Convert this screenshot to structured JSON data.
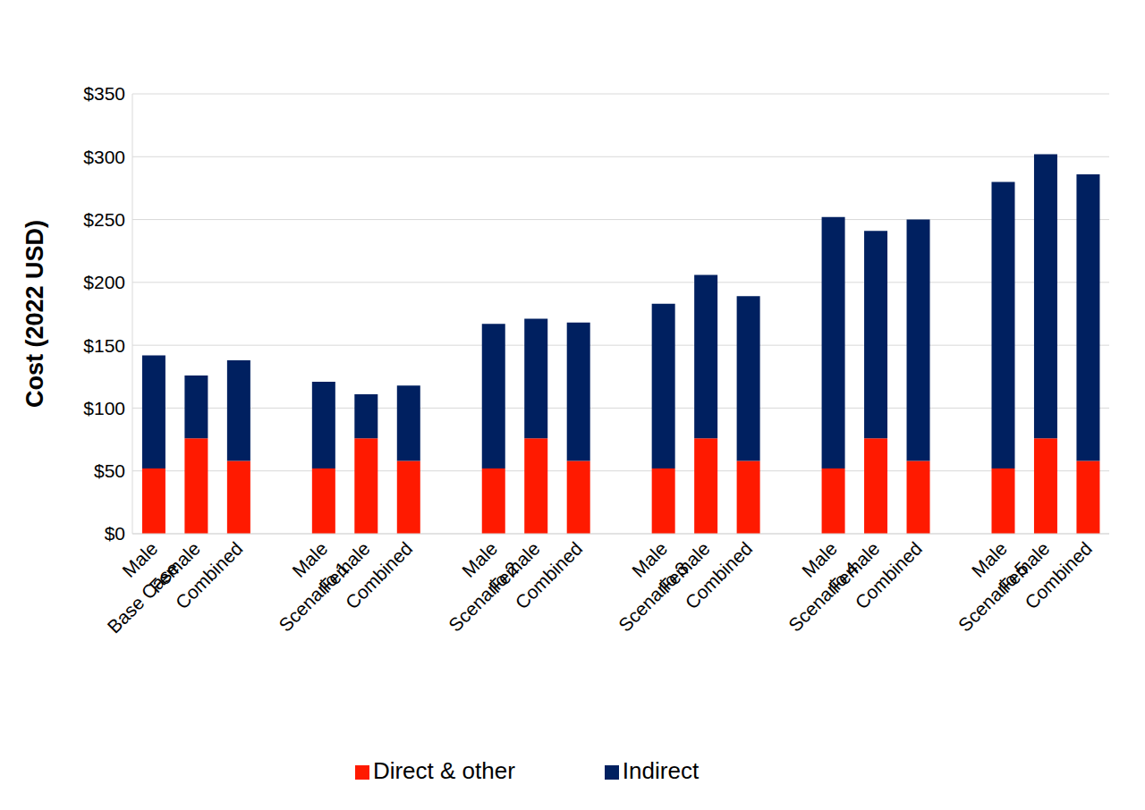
{
  "chart_data": {
    "type": "bar",
    "stacked": true,
    "grid": true,
    "legend": "bottom",
    "y_label": "Cost (2022 USD)",
    "categories": [
      "Male",
      "Female",
      "Combined",
      null,
      "Male",
      "Female",
      "Combined",
      null,
      "Male",
      "Female",
      "Combined",
      null,
      "Male",
      "Female",
      "Combined",
      null,
      "Male",
      "Female",
      "Combined",
      null,
      "Male",
      "Female",
      "Combined"
    ],
    "groups": [
      "Base Case",
      "Scenario 1",
      "Scenario 2",
      "Scenario 3",
      "Scenario 4",
      "Scenario 5"
    ],
    "series": [
      {
        "name": "Direct & other",
        "color": "#ff1a00",
        "values": [
          52,
          76,
          58,
          null,
          52,
          76,
          58,
          null,
          52,
          76,
          58,
          null,
          52,
          76,
          58,
          null,
          52,
          76,
          58,
          null,
          52,
          76,
          58
        ]
      },
      {
        "name": "Indirect",
        "color": "#002060",
        "values": [
          90,
          50,
          80,
          null,
          69,
          35,
          60,
          null,
          115,
          95,
          110,
          null,
          131,
          130,
          131,
          null,
          200,
          165,
          192,
          null,
          228,
          226,
          228
        ]
      }
    ],
    "ylim": [
      0,
      350
    ],
    "yticks": [
      {
        "value": 0,
        "label": "$0"
      },
      {
        "value": 50,
        "label": "$50"
      },
      {
        "value": 100,
        "label": "$100"
      },
      {
        "value": 150,
        "label": "$150"
      },
      {
        "value": 200,
        "label": "$200"
      },
      {
        "value": 250,
        "label": "$250"
      },
      {
        "value": 300,
        "label": "$300"
      },
      {
        "value": 350,
        "label": "$350"
      }
    ]
  }
}
